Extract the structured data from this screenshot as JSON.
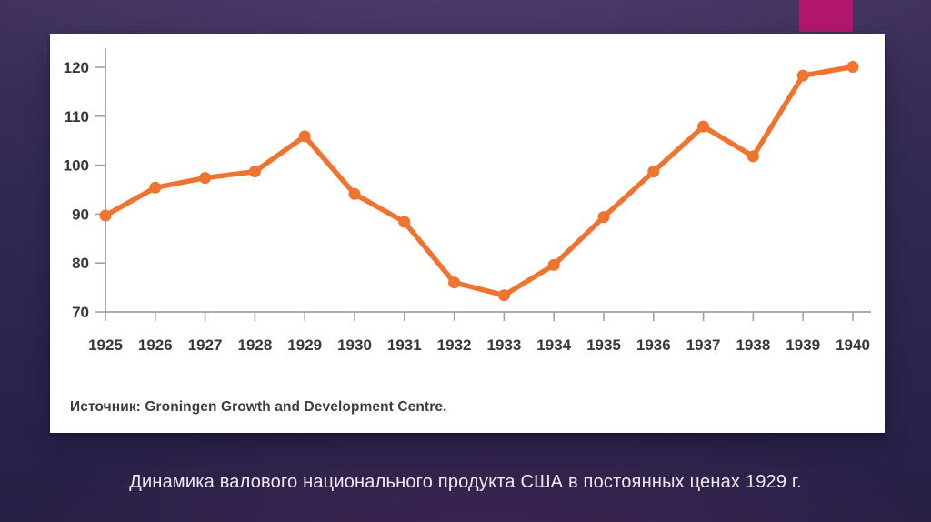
{
  "slide": {
    "caption": "Динамика валового национального продукта США в постоянных ценах 1929 г."
  },
  "chart": {
    "source": "Источник: Groningen Growth and Development Centre."
  },
  "chart_data": {
    "type": "line",
    "title": "",
    "xlabel": "",
    "ylabel": "",
    "categories": [
      "1925",
      "1926",
      "1927",
      "1928",
      "1929",
      "1930",
      "1931",
      "1932",
      "1933",
      "1934",
      "1935",
      "1936",
      "1937",
      "1938",
      "1939",
      "1940"
    ],
    "values": [
      89.7,
      95.4,
      97.4,
      98.7,
      105.9,
      94.1,
      88.4,
      76.0,
      73.4,
      79.6,
      89.4,
      98.7,
      107.9,
      101.8,
      118.3,
      120.1
    ],
    "ylim": [
      70,
      124
    ],
    "yticks": [
      70,
      80,
      90,
      100,
      110,
      120
    ],
    "grid": false,
    "legend": null,
    "marker": "circle"
  },
  "colors": {
    "line": "#F0732F",
    "marker": "#F0732F",
    "axis": "#A0A0A0",
    "tick_label": "#383838",
    "accent_rect": "#B0176B",
    "card": "#FFFFFF",
    "caption_text": "#EFE9F4"
  }
}
